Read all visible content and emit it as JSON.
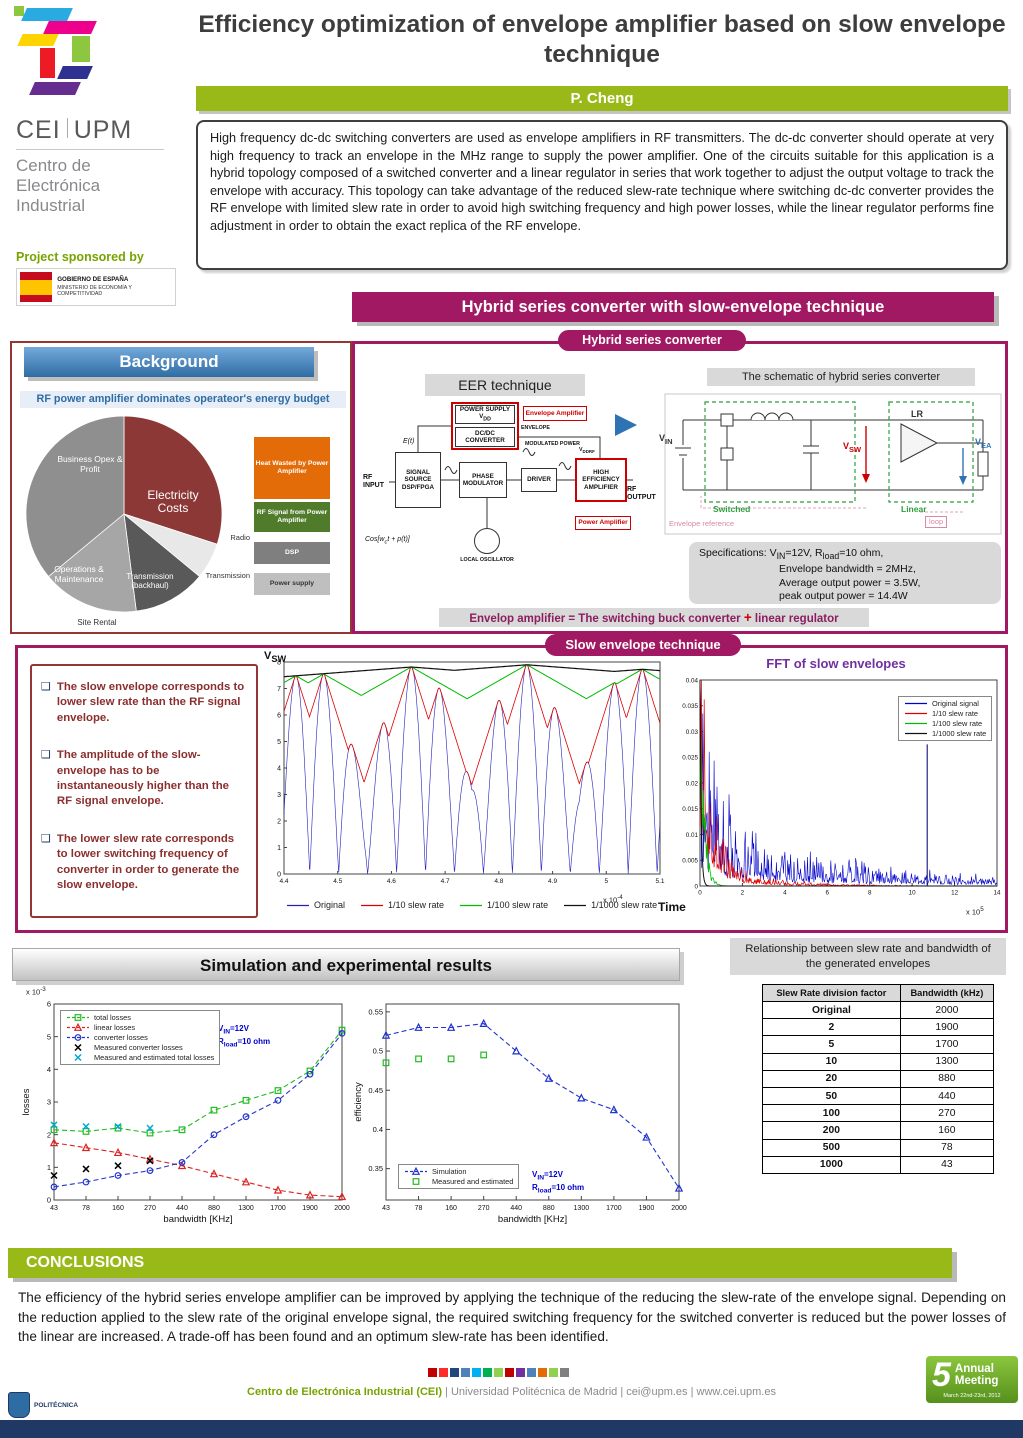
{
  "header": {
    "logo_cei": "CEI",
    "logo_upm": "UPM",
    "org_lines": [
      "Centro de",
      "Electrónica",
      "Industrial"
    ],
    "title": "Efficiency optimization of envelope amplifier based on slow envelope technique",
    "author": "P. Cheng",
    "abstract": "High frequency dc-dc switching converters are used as envelope amplifiers in RF transmitters. The dc-dc converter should operate at very high frequency to track an envelope in the MHz range to supply the power amplifier. One of the circuits suitable for this application is a hybrid topology composed of a switched converter and a linear regulator in series that work together to adjust the output voltage to track the envelope with accuracy. This topology can take advantage of the reduced slew-rate technique where switching dc-dc converter provides the RF envelope with limited slew rate in order to avoid high switching frequency and high power losses, while the linear regulator performs fine adjustment in order to obtain the exact replica of the RF envelope.",
    "sponsor_label": "Project sponsored by",
    "sponsor_gov": "GOBIERNO DE ESPAÑA",
    "sponsor_ministry": "MINISTERIO DE ECONOMÍA Y COMPETITIVIDAD"
  },
  "background": {
    "title": "Background",
    "subtitle": "RF power amplifier dominates operateor's energy budget",
    "pie_labels": {
      "business": "Business Opex & Profit",
      "electricity": "Electricity Costs",
      "operations": "Operations & Maintenance",
      "transmission": "Transmission (backhaul)",
      "site": "Site Rental"
    },
    "radio_label": "Radio",
    "transmission_label": "Transmission"
  },
  "hybrid": {
    "banner": "Hybrid series converter with slow-envelope technique",
    "sub_banner": "Hybrid series converter",
    "eer_label": "EER technique",
    "schematic_label": "The schematic of hybrid series converter",
    "eer": {
      "et": "E(t)",
      "rf_input": "RF INPUT",
      "signal_source": "SIGNAL SOURCE DSP/FPGA",
      "phase_mod": "PHASE MODULATOR",
      "driver": "DRIVER",
      "local_osc": "LOCAL OSCILLATOR",
      "cos": "Cos[w_c_t + p(t)]",
      "power_supply": "POWER SUPPLY V_DD_",
      "dcdc": "DC/DC CONVERTER",
      "envelope_amp": "Envelope Amplifier",
      "envelope": "ENVELOPE",
      "modulated": "MODULATED POWER",
      "vddrf": "V_DDRF_",
      "hea": "HIGH EFFICIENCY AMPLIFIER",
      "rf_output": "RF OUTPUT",
      "power_amp": "Power Amplifier"
    },
    "schematic": {
      "vin": "V_IN_",
      "lr": "LR",
      "vsw": "V_SW_",
      "vea": "V_EA_",
      "switched": "Switched",
      "linear": "Linear",
      "env_ref": "Envelope reference",
      "loop": "loop"
    },
    "specs_lines": [
      "Specifications:  V_IN_=12V, R_load_=10 ohm,",
      "Envelope bandwidth = 2MHz,",
      "Average output power = 3.5W,",
      "peak output power = 14.4W"
    ],
    "equation": {
      "left": "Envelop amplifier = The switching buck converter",
      "plus": "+",
      "right": "linear regulator"
    }
  },
  "slow_envelope": {
    "banner": "Slow envelope technique",
    "bullets": [
      "The slow envelope corresponds to lower slew rate than the RF signal envelope.",
      "The amplitude of the slow-envelope has to be instantaneously higher than the RF signal envelope.",
      "The lower slew rate corresponds to lower switching frequency of converter in order to generate the slow envelope."
    ],
    "time_label": "Time",
    "relationship_caption": "Relationship between slew rate and bandwidth of the generated envelopes",
    "table": {
      "headers": [
        "Slew Rate division factor",
        "Bandwidth (kHz)"
      ],
      "rows": [
        [
          "Original",
          "2000"
        ],
        [
          "2",
          "1900"
        ],
        [
          "5",
          "1700"
        ],
        [
          "10",
          "1300"
        ],
        [
          "20",
          "880"
        ],
        [
          "50",
          "440"
        ],
        [
          "100",
          "270"
        ],
        [
          "200",
          "160"
        ],
        [
          "500",
          "78"
        ],
        [
          "1000",
          "43"
        ]
      ]
    }
  },
  "results": {
    "title": "Simulation and experimental results"
  },
  "conclusions": {
    "title": "CONCLUSIONS",
    "text": "The efficiency of the hybrid series envelope amplifier can be improved by applying the technique of the reducing the slew-rate of the envelope signal. Depending on the reduction applied to the slew rate of the original envelope signal, the required switching frequency for the switched converter is reduced but the power losses of the linear are increased. A trade-off has been found and an optimum slew-rate has been identified."
  },
  "footer": {
    "cei": "Centro de Electrónica Industrial (CEI)",
    "rest": " | Universidad Politécnica de Madrid | cei@upm.es | www.cei.upm.es",
    "squares": [
      "#c00000",
      "#ff2a2a",
      "#1f497d",
      "#4f81bd",
      "#00b0f0",
      "#00b050",
      "#92d050",
      "#c00000",
      "#7030a0",
      "#4f81bd",
      "#e36c09",
      "#92d050",
      "#808080"
    ],
    "meeting": {
      "five": "5",
      "line1": "Annual",
      "line2": "Meeting",
      "date": "March 22nd-23rd, 2012"
    },
    "upm_label": "POLITÉCNICA"
  },
  "chart_data": [
    {
      "id": "vsw_waveform",
      "type": "line",
      "ylabel": "V_SW_",
      "xlabel": "Time",
      "ylim": [
        0,
        8
      ],
      "xtick_labels": [
        "4.4",
        "4.5",
        "4.6",
        "4.7",
        "4.8",
        "4.9",
        "5",
        "5.1"
      ],
      "x_scale_note": "x 10^-4^",
      "legend": [
        {
          "name": "Original",
          "color": "#2222bb"
        },
        {
          "name": "1/10 slew rate",
          "color": "#dd0000"
        },
        {
          "name": "1/100 slew rate",
          "color": "#00bb00"
        },
        {
          "name": "1/1000 slew rate",
          "color": "#111111"
        }
      ],
      "description": "RF envelope and slew-rate limited slow envelopes; lower slew rate gives flatter envelope near 8V"
    },
    {
      "id": "fft_slow_envelopes",
      "type": "line",
      "title": "FFT of slow envelopes",
      "ylim": [
        0,
        0.04
      ],
      "yticks": [
        0,
        0.005,
        0.01,
        0.015,
        0.02,
        0.025,
        0.03,
        0.035,
        0.04
      ],
      "xticks": [
        0,
        2,
        4,
        6,
        8,
        10,
        12,
        14
      ],
      "x_scale_note": "x 10^5^",
      "legend": [
        {
          "name": "Original signal",
          "color": "#0000cc"
        },
        {
          "name": "1/10 slew rate",
          "color": "#dd0000"
        },
        {
          "name": "1/100 slew rate",
          "color": "#00bb00"
        },
        {
          "name": "1/1000 slew rate",
          "color": "#111111"
        }
      ]
    },
    {
      "id": "losses",
      "type": "line",
      "xlabel": "bandwidth [KHz]",
      "ylabel": "losses",
      "y_scale_note": "x 10^-3^",
      "annotation": [
        "V_IN_=12V",
        "R_load_=10 ohm"
      ],
      "categories": [
        "43",
        "78",
        "160",
        "270",
        "440",
        "880",
        "1300",
        "1700",
        "1900",
        "2000"
      ],
      "ylim": [
        0,
        6
      ],
      "yticks": [
        0,
        1,
        2,
        3,
        4,
        5,
        6
      ],
      "series": [
        {
          "name": "total losses",
          "color": "#22bb22",
          "marker": "square",
          "dashed": true,
          "values": [
            2.15,
            2.1,
            2.2,
            2.05,
            2.15,
            2.75,
            3.05,
            3.35,
            3.95,
            5.2
          ]
        },
        {
          "name": "linear losses",
          "color": "#dd2222",
          "marker": "triangle",
          "dashed": true,
          "values": [
            1.75,
            1.6,
            1.45,
            1.25,
            1.05,
            0.8,
            0.55,
            0.3,
            0.15,
            0.1
          ]
        },
        {
          "name": "converter losses",
          "color": "#2233cc",
          "marker": "circle",
          "dashed": true,
          "values": [
            0.4,
            0.55,
            0.75,
            0.9,
            1.15,
            2.0,
            2.55,
            3.05,
            3.85,
            5.1
          ]
        },
        {
          "name": "Measured converter losses",
          "color": "#000000",
          "marker": "x",
          "line": false,
          "values": [
            0.75,
            0.95,
            1.05,
            1.2,
            null,
            null,
            null,
            null,
            null,
            null
          ]
        },
        {
          "name": "Measured and estimated total losses",
          "color": "#00aacc",
          "marker": "x",
          "line": false,
          "values": [
            2.3,
            2.25,
            2.25,
            2.2,
            null,
            null,
            null,
            null,
            null,
            null
          ]
        }
      ]
    },
    {
      "id": "efficiency",
      "type": "line",
      "xlabel": "bandwidth [KHz]",
      "ylabel": "efficiency",
      "annotation": [
        "V_IN_=12V",
        "R_load_=10 ohm"
      ],
      "categories": [
        "43",
        "78",
        "160",
        "270",
        "440",
        "880",
        "1300",
        "1700",
        "1900",
        "2000"
      ],
      "ylim": [
        0.31,
        0.56
      ],
      "yticks": [
        0.35,
        0.4,
        0.45,
        0.5,
        0.55
      ],
      "series": [
        {
          "name": "Simulation",
          "color": "#2233cc",
          "marker": "triangle",
          "dashed": true,
          "values": [
            0.52,
            0.53,
            0.53,
            0.535,
            0.5,
            0.465,
            0.44,
            0.425,
            0.39,
            0.325
          ]
        },
        {
          "name": "Measured and estimated",
          "color": "#22bb22",
          "marker": "square",
          "line": false,
          "values": [
            0.485,
            0.49,
            0.49,
            0.495,
            null,
            null,
            null,
            null,
            null,
            null
          ]
        }
      ]
    },
    {
      "id": "operator_energy_budget_pie",
      "type": "pie",
      "slices": [
        {
          "label": "Electricity Costs",
          "value": 30,
          "color": "#8c3836"
        },
        {
          "label": "Site Rental",
          "value": 6,
          "color": "#e8e8e8"
        },
        {
          "label": "Transmission (backhaul)",
          "value": 12,
          "color": "#595959"
        },
        {
          "label": "Operations & Maintenance",
          "value": 16,
          "color": "#a6a6a6"
        },
        {
          "label": "Business Opex & Profit",
          "value": 36,
          "color": "#8f8f8f"
        }
      ]
    },
    {
      "id": "radio_power_breakdown_stack",
      "type": "stack",
      "segments": [
        {
          "label": "Heat Wasted by Power Amplifier",
          "value": 46,
          "color": "#e36c09"
        },
        {
          "label": "RF Signal from Power Amplifier",
          "value": 22,
          "color": "#4f7b2a"
        },
        {
          "label": "DSP",
          "value": 16,
          "color": "#7f7f7f"
        },
        {
          "label": "Power supply",
          "value": 16,
          "color": "#bfbfbf"
        }
      ]
    }
  ]
}
